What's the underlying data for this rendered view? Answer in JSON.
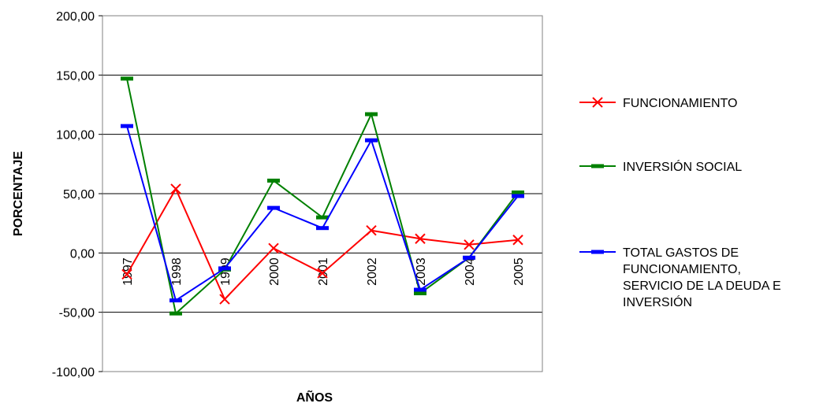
{
  "chart_data": {
    "type": "line",
    "xlabel": "AÑOS",
    "ylabel": "PORCENTAJE",
    "ylim": [
      -100,
      200
    ],
    "yticks": [
      -100,
      -50,
      0,
      50,
      100,
      150,
      200
    ],
    "ytick_labels": [
      "-100,00",
      "-50,00",
      "0,00",
      "50,00",
      "100,00",
      "150,00",
      "200,00"
    ],
    "categories": [
      "1997",
      "1998",
      "1999",
      "2000",
      "2001",
      "2002",
      "2003",
      "2004",
      "2005"
    ],
    "grid": "horizontal",
    "legend_position": "right",
    "series": [
      {
        "name": "FUNCIONAMIENTO",
        "color": "#ff0000",
        "marker": "x",
        "values": [
          -18,
          54,
          -39,
          4,
          -17,
          19,
          12,
          7,
          11
        ]
      },
      {
        "name": "INVERSIÓN SOCIAL",
        "color": "#008000",
        "marker": "dash",
        "values": [
          147,
          -51,
          -14,
          61,
          30,
          117,
          -34,
          -4,
          51
        ]
      },
      {
        "name": "TOTAL GASTOS DE FUNCIONAMIENTO, SERVICIO DE LA DEUDA E INVERSIÓN",
        "legend_lines": [
          "TOTAL GASTOS DE",
          "FUNCIONAMIENTO,",
          "SERVICIO DE LA DEUDA E",
          "INVERSIÓN"
        ],
        "color": "#0000ff",
        "marker": "dash",
        "values": [
          107,
          -40,
          -13,
          38,
          21,
          95,
          -31,
          -4,
          48
        ]
      }
    ]
  }
}
